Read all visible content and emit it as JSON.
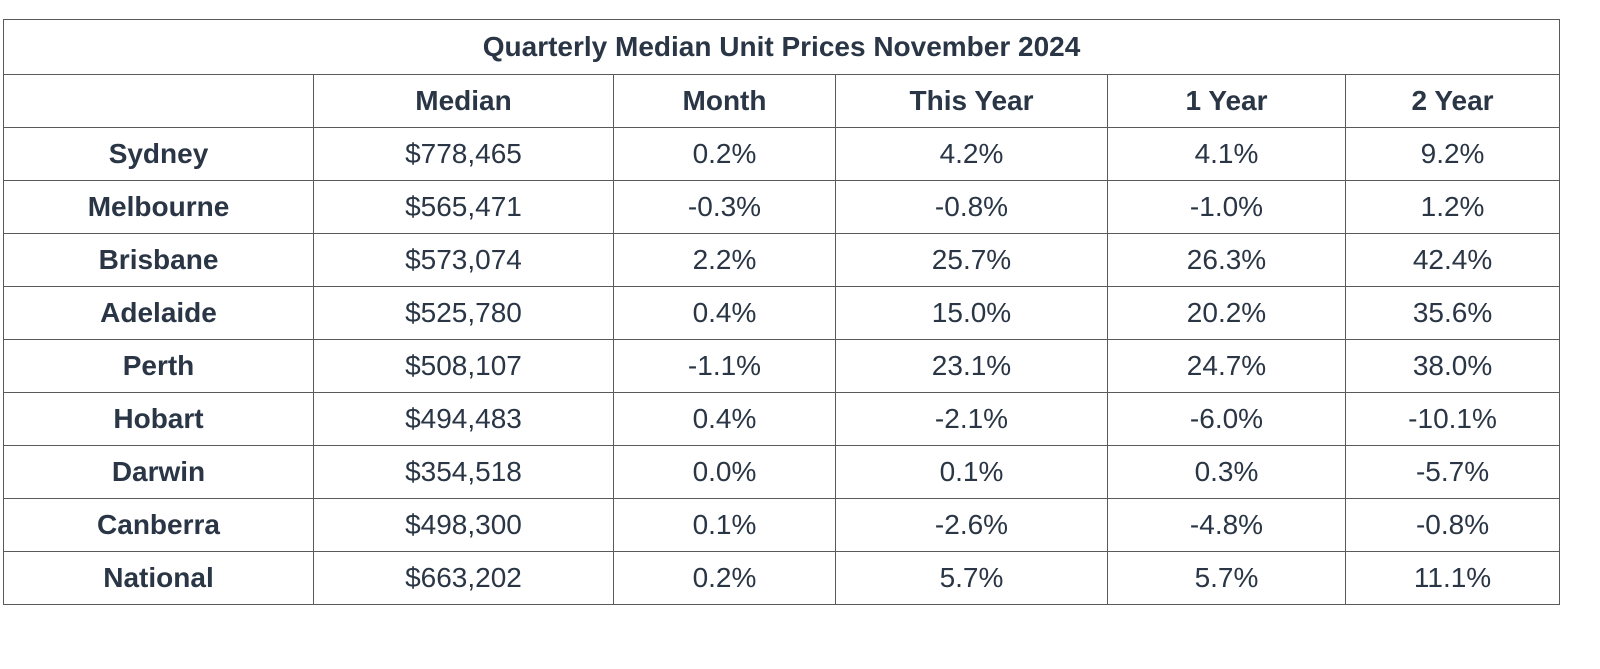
{
  "table": {
    "title": "Quarterly Median Unit Prices November 2024",
    "headers": [
      "",
      "Median",
      "Month",
      "This Year",
      "1 Year",
      "2 Year"
    ],
    "rows": [
      {
        "city": "Sydney",
        "median": "$778,465",
        "month": "0.2%",
        "this_year": "4.2%",
        "one_year": "4.1%",
        "two_year": "9.2%"
      },
      {
        "city": "Melbourne",
        "median": "$565,471",
        "month": "-0.3%",
        "this_year": "-0.8%",
        "one_year": "-1.0%",
        "two_year": "1.2%"
      },
      {
        "city": "Brisbane",
        "median": "$573,074",
        "month": "2.2%",
        "this_year": "25.7%",
        "one_year": "26.3%",
        "two_year": "42.4%"
      },
      {
        "city": "Adelaide",
        "median": "$525,780",
        "month": "0.4%",
        "this_year": "15.0%",
        "one_year": "20.2%",
        "two_year": "35.6%"
      },
      {
        "city": "Perth",
        "median": "$508,107",
        "month": "-1.1%",
        "this_year": "23.1%",
        "one_year": "24.7%",
        "two_year": "38.0%"
      },
      {
        "city": "Hobart",
        "median": "$494,483",
        "month": "0.4%",
        "this_year": "-2.1%",
        "one_year": "-6.0%",
        "two_year": "-10.1%"
      },
      {
        "city": "Darwin",
        "median": "$354,518",
        "month": "0.0%",
        "this_year": "0.1%",
        "one_year": "0.3%",
        "two_year": "-5.7%"
      },
      {
        "city": "Canberra",
        "median": "$498,300",
        "month": "0.1%",
        "this_year": "-2.6%",
        "one_year": "-4.8%",
        "two_year": "-0.8%"
      },
      {
        "city": "National",
        "median": "$663,202",
        "month": "0.2%",
        "this_year": "5.7%",
        "one_year": "5.7%",
        "two_year": "11.1%"
      }
    ]
  },
  "colors": {
    "text": "#2a3645",
    "border": "#5a5a5a",
    "background": "#ffffff"
  }
}
